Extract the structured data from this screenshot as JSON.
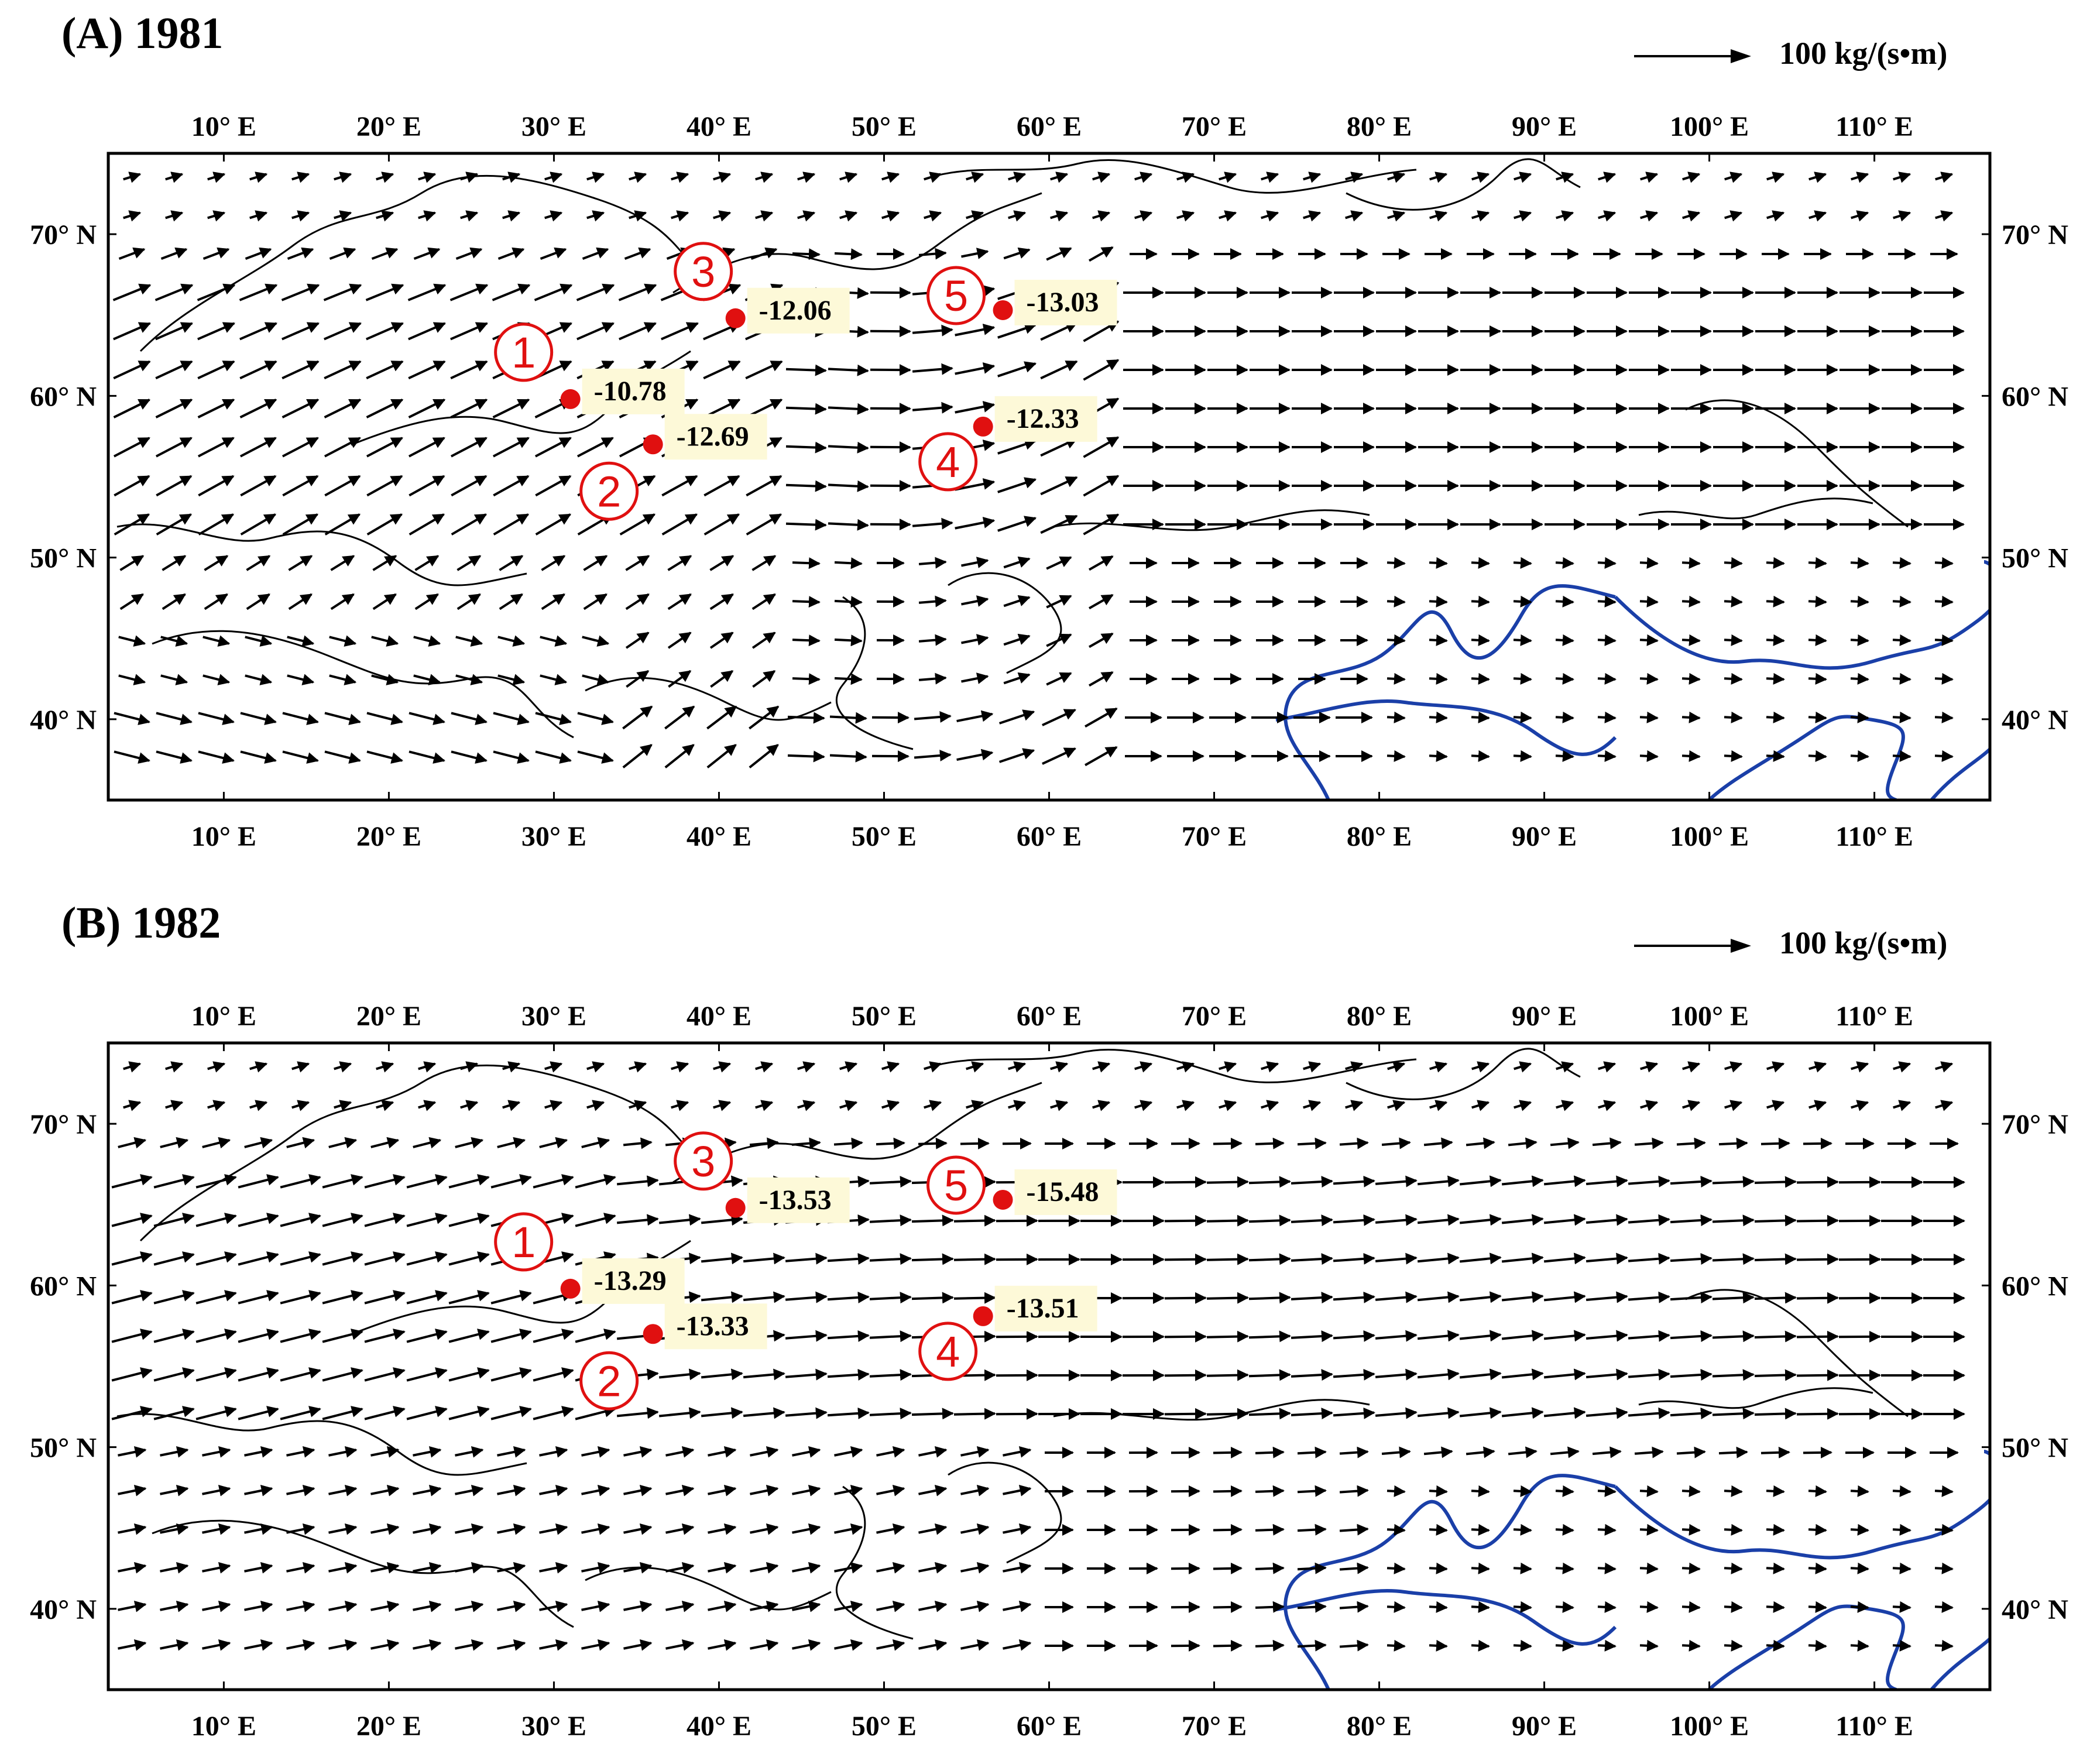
{
  "map": {
    "lon_ticks": [
      "10° E",
      "20° E",
      "30° E",
      "40° E",
      "50° E",
      "60° E",
      "70° E",
      "80° E",
      "90° E",
      "100° E",
      "110° E"
    ],
    "lat_ticks": [
      "40° N",
      "50° N",
      "60° N",
      "70° N"
    ],
    "lon_range": [
      3,
      117
    ],
    "lat_range": [
      35,
      75
    ],
    "vector_scale_label": "100 kg/(s•m)",
    "colors": {
      "sites": "#e01010",
      "country_border": "#1a3fa8",
      "label_bg": "#fdf9d8",
      "vectors": "#000000"
    }
  },
  "panels": [
    {
      "title": "(A) 1981",
      "sites": [
        {
          "id": "1",
          "lon": 31.0,
          "lat": 59.8,
          "value": "-10.78"
        },
        {
          "id": "2",
          "lon": 36.0,
          "lat": 57.0,
          "value": "-12.69"
        },
        {
          "id": "3",
          "lon": 41.0,
          "lat": 64.8,
          "value": "-12.06"
        },
        {
          "id": "4",
          "lon": 56.0,
          "lat": 58.1,
          "value": "-12.33"
        },
        {
          "id": "5",
          "lon": 57.2,
          "lat": 65.3,
          "value": "-13.03"
        }
      ]
    },
    {
      "title": "(B) 1982",
      "sites": [
        {
          "id": "1",
          "lon": 31.0,
          "lat": 59.8,
          "value": "-13.29"
        },
        {
          "id": "2",
          "lon": 36.0,
          "lat": 57.0,
          "value": "-13.33"
        },
        {
          "id": "3",
          "lon": 41.0,
          "lat": 64.8,
          "value": "-13.53"
        },
        {
          "id": "4",
          "lon": 56.0,
          "lat": 58.1,
          "value": "-13.51"
        },
        {
          "id": "5",
          "lon": 57.2,
          "lat": 65.3,
          "value": "-15.48"
        }
      ]
    }
  ]
}
